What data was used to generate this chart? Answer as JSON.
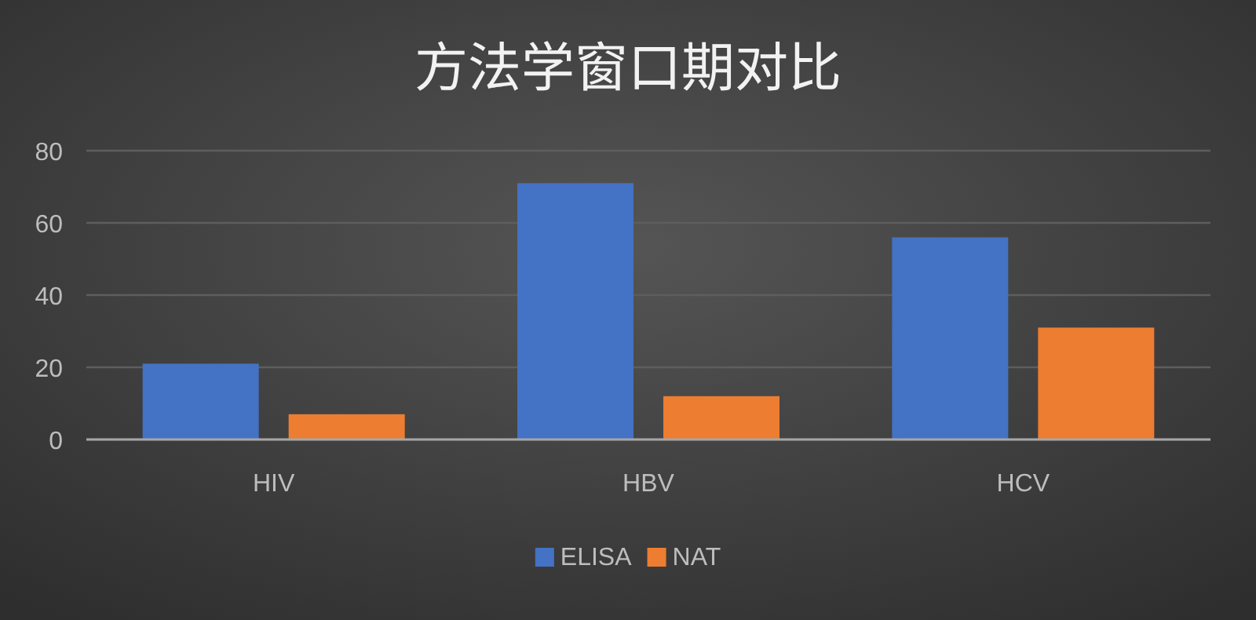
{
  "chart_data": {
    "type": "bar",
    "title": "方法学窗口期对比",
    "categories": [
      "HIV",
      "HBV",
      "HCV"
    ],
    "series": [
      {
        "name": "ELISA",
        "color": "#4472c4",
        "values": [
          21,
          71,
          56
        ]
      },
      {
        "name": "NAT",
        "color": "#ed7d31",
        "values": [
          7,
          12,
          31
        ]
      }
    ],
    "ylim": [
      0,
      80
    ],
    "yticks": [
      0,
      20,
      40,
      60,
      80
    ],
    "grid": "y",
    "legend": "bottom"
  }
}
